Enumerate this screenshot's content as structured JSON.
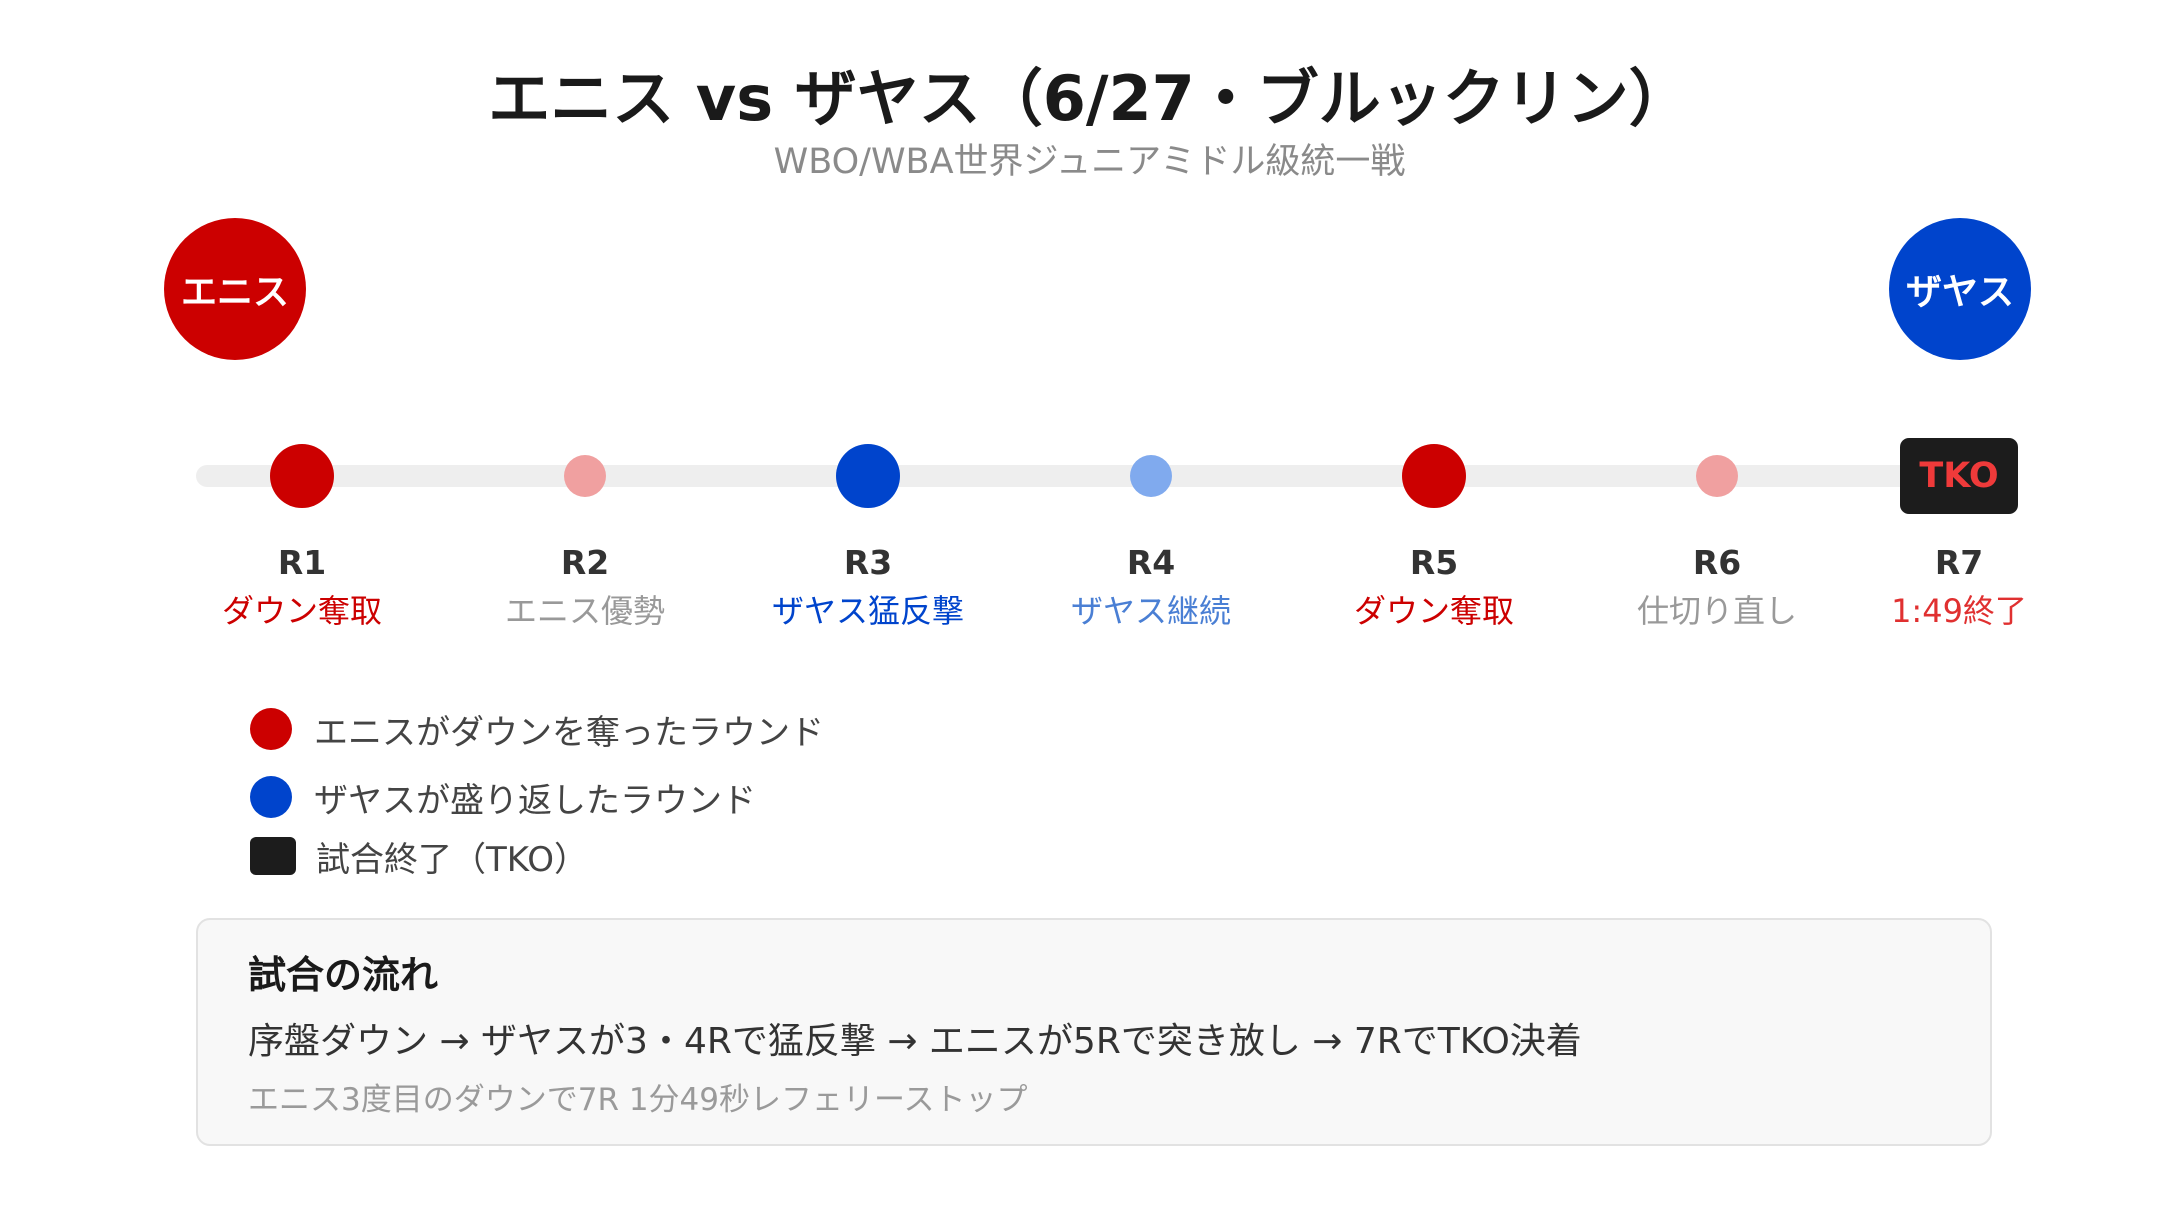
{
  "header": {
    "title": "エニス vs ザヤス（6/27・ブルックリン）",
    "subtitle": "WBO/WBA世界ジュニアミドル級統一戦"
  },
  "fighters": {
    "left": {
      "name": "エニス",
      "color": "#cc0000"
    },
    "right": {
      "name": "ザヤス",
      "color": "#0044cc"
    }
  },
  "rounds": [
    {
      "label": "R1",
      "note": "ダウン奪取",
      "marker": "major-red"
    },
    {
      "label": "R2",
      "note": "エニス優勢",
      "marker": "minor-red"
    },
    {
      "label": "R3",
      "note": "ザヤス猛反撃",
      "marker": "major-blue"
    },
    {
      "label": "R4",
      "note": "ザヤス継続",
      "marker": "minor-blue"
    },
    {
      "label": "R5",
      "note": "ダウン奪取",
      "marker": "major-red"
    },
    {
      "label": "R6",
      "note": "仕切り直し",
      "marker": "minor-red"
    },
    {
      "label": "R7",
      "note": "1:49終了",
      "marker": "tko",
      "marker_text": "TKO"
    }
  ],
  "colors": {
    "major-red": "#cc0000",
    "minor-red": "#f0a0a0",
    "major-blue": "#0044cc",
    "minor-blue": "#80aaee",
    "tko": "#1c1c1c",
    "tko-text": "#ef3a3a",
    "note-red": "#cc0000",
    "note-blue": "#0044cc",
    "note-lightblue": "#4a7fd4",
    "note-gray": "#999999",
    "note-tko": "#e03030"
  },
  "legend": [
    {
      "text": "エニスがダウンを奪ったラウンド",
      "swatch": "red-circle"
    },
    {
      "text": "ザヤスが盛り返したラウンド",
      "swatch": "blue-circle"
    },
    {
      "text": "試合終了（TKO）",
      "swatch": "black-rect"
    }
  ],
  "summary": {
    "heading": "試合の流れ",
    "body": "序盤ダウン → ザヤスが3・4Rで猛反撃 → エニスが5Rで突き放し → 7RでTKO決着",
    "note": "エニス3度目のダウンで7R 1分49秒レフェリーストップ"
  }
}
